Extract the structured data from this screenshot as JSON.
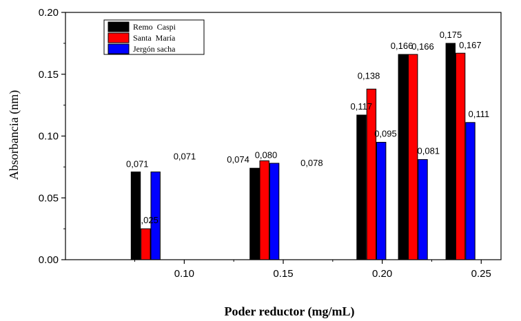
{
  "chart_data": {
    "type": "bar",
    "xlabel": "Poder reductor (mg/mL)",
    "ylabel": "Absorbancia (nm)",
    "x_ticks": [
      "0.10",
      "0.15",
      "0.20",
      "0.25"
    ],
    "y_ticks": [
      "0.00",
      "0.05",
      "0.10",
      "0.15",
      "0.20"
    ],
    "xlim": [
      0.04,
      0.26
    ],
    "ylim": [
      0,
      0.2
    ],
    "grid": false,
    "legend_position": "top-left",
    "series": [
      {
        "name": "Remo  Caspi",
        "color": "#000000",
        "x": [
          0.0755,
          0.1355,
          0.1895,
          0.2105,
          0.2345
        ],
        "values": [
          0.071,
          0.074,
          0.117,
          0.166,
          0.175
        ],
        "labels": [
          "0,071",
          "0,074",
          "0,117",
          "0,166",
          "0,175"
        ]
      },
      {
        "name": "Santa  María",
        "color": "#ff0000",
        "x": [
          0.0805,
          0.1405,
          0.1945,
          0.2155,
          0.2395
        ],
        "values": [
          0.025,
          0.08,
          0.138,
          0.166,
          0.167
        ],
        "labels": [
          "0,025",
          "0,080",
          "0,138",
          "0,166",
          "0,167"
        ]
      },
      {
        "name": "Jergón sacha",
        "color": "#0000ff",
        "x": [
          0.0855,
          0.1455,
          0.1995,
          0.2205,
          0.2445
        ],
        "values": [
          0.071,
          0.078,
          0.095,
          0.081,
          0.111
        ],
        "labels": [
          "0,071",
          "0,078",
          "0,095",
          "0,081",
          "0,111"
        ]
      }
    ]
  }
}
